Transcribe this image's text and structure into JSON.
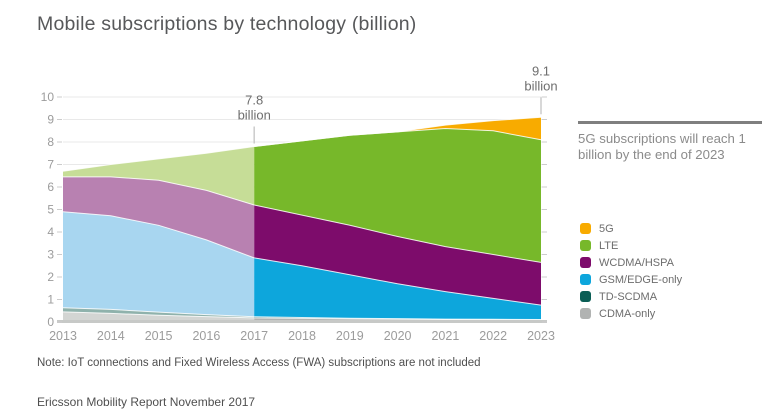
{
  "page": {
    "title": "Mobile subscriptions by technology (billion)",
    "sidebar_callout": "5G subscriptions will reach 1 billion by the end of 2023",
    "note": "Note: IoT connections and Fixed Wireless Access (FWA) subscriptions are not included",
    "footer": "Ericsson Mobility Report November 2017"
  },
  "chart_data": {
    "type": "area",
    "stacked": true,
    "title": "Mobile subscriptions by technology (billion)",
    "xlabel": "",
    "ylabel": "",
    "x": [
      2013,
      2014,
      2015,
      2016,
      2017,
      2018,
      2019,
      2020,
      2021,
      2022,
      2023
    ],
    "ylim": [
      0,
      10
    ],
    "yticks": [
      0,
      1,
      2,
      3,
      4,
      5,
      6,
      7,
      8,
      9,
      10
    ],
    "grid": true,
    "legend_position": "right",
    "forecast_boundary_year": 2017,
    "history_style": "years 2013-2017 drawn in faded colors (historical), 2017-2023 saturated (forecast)",
    "series": [
      {
        "name": "CDMA-only",
        "color": "#b1b3b2",
        "faded_color": "#d3d5d3",
        "values": [
          0.45,
          0.38,
          0.3,
          0.24,
          0.18,
          0.16,
          0.14,
          0.12,
          0.11,
          0.1,
          0.09
        ]
      },
      {
        "name": "TD-SCDMA",
        "color": "#0a5e55",
        "faded_color": "#8fb2ac",
        "values": [
          0.18,
          0.18,
          0.14,
          0.09,
          0.05,
          0.04,
          0.03,
          0.03,
          0.02,
          0.02,
          0.02
        ]
      },
      {
        "name": "GSM/EDGE-only",
        "color": "#0da6dc",
        "faded_color": "#a8d6f0",
        "values": [
          4.27,
          4.16,
          3.86,
          3.32,
          2.62,
          2.3,
          1.93,
          1.55,
          1.22,
          0.93,
          0.64
        ]
      },
      {
        "name": "WCDMA/HSPA",
        "color": "#7d0c6b",
        "faded_color": "#b881b1",
        "values": [
          1.55,
          1.73,
          2.0,
          2.2,
          2.35,
          2.25,
          2.2,
          2.1,
          2.0,
          1.95,
          1.9
        ]
      },
      {
        "name": "LTE",
        "color": "#77b82a",
        "faded_color": "#c6dd97",
        "values": [
          0.25,
          0.55,
          0.95,
          1.65,
          2.6,
          3.3,
          4.0,
          4.65,
          5.25,
          5.5,
          5.45
        ]
      },
      {
        "name": "5G",
        "color": "#f8ab00",
        "faded_color": "#fbdd99",
        "values": [
          0,
          0,
          0,
          0,
          0,
          0,
          0,
          0,
          0.15,
          0.45,
          1.0
        ]
      }
    ],
    "totals_by_year": [
      6.7,
      7.0,
      7.25,
      7.5,
      7.8,
      8.05,
      8.3,
      8.45,
      8.75,
      8.95,
      9.1
    ],
    "legend_order_top_to_bottom": [
      "5G",
      "LTE",
      "WCDMA/HSPA",
      "GSM/EDGE-only",
      "TD-SCDMA",
      "CDMA-only"
    ],
    "annotations": [
      {
        "x": 2017,
        "value": 7.8,
        "line1": "7.8",
        "line2": "billion"
      },
      {
        "x": 2023,
        "value": 9.1,
        "line1": "9.1",
        "line2": "billion"
      }
    ]
  }
}
